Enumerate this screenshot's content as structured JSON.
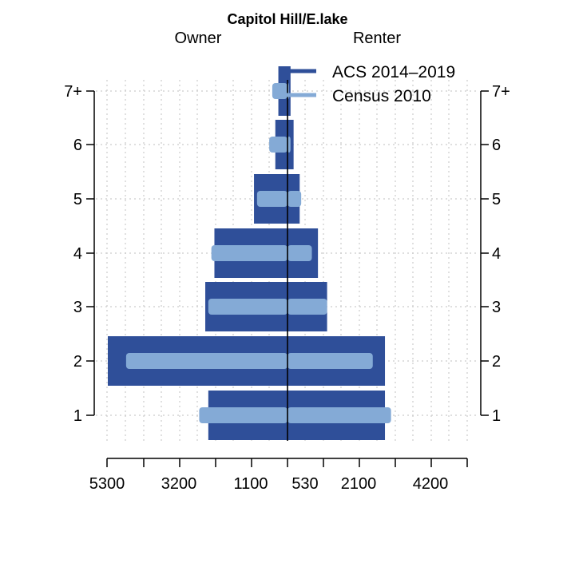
{
  "chart_data": {
    "type": "bar",
    "subtype": "population-pyramid",
    "title": "Capitol Hill/E.lake",
    "left_label": "Owner",
    "right_label": "Renter",
    "categories": [
      "1",
      "2",
      "3",
      "4",
      "5",
      "6",
      "7+"
    ],
    "x_ticks_left": [
      "5300",
      "3200",
      "1100"
    ],
    "x_ticks_right": [
      "530",
      "2100",
      "4200"
    ],
    "series": [
      {
        "name": "ACS 2014–2019",
        "color": "#2f4f99",
        "owner": [
          2600,
          5900,
          2700,
          2400,
          1100,
          400,
          300
        ],
        "renter": [
          3200,
          3200,
          1300,
          1000,
          400,
          200,
          100
        ]
      },
      {
        "name": "Census 2010",
        "color": "#84aad6",
        "owner": [
          2900,
          5300,
          2600,
          2500,
          1000,
          600,
          500
        ],
        "renter": [
          3400,
          2800,
          1300,
          800,
          450,
          100,
          50
        ]
      }
    ],
    "grid": true,
    "legend": "top-right"
  }
}
